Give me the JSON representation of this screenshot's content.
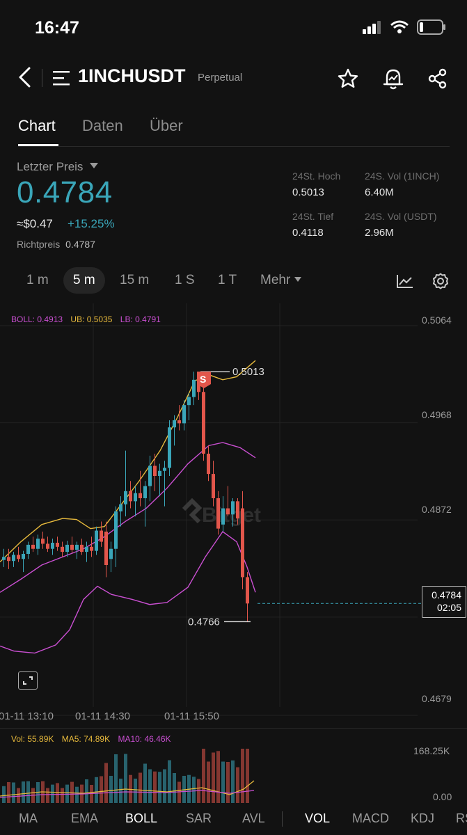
{
  "status": {
    "time": "16:47"
  },
  "header": {
    "title": "1INCHUSDT",
    "subtitle": "Perpetual"
  },
  "tabs": [
    "Chart",
    "Daten",
    "Über"
  ],
  "ticker": {
    "label": "Letzter Preis",
    "price": "0.4784",
    "approx_usd": "≈$0.47",
    "change": "+15.25%",
    "mark_label": "Richtpreis",
    "mark_price": "0.4787",
    "high_label": "24St. Hoch",
    "high": "0.5013",
    "vol_base_label": "24S. Vol (1INCH)",
    "vol_base": "6.40M",
    "low_label": "24St. Tief",
    "low": "0.4118",
    "vol_quote_label": "24S. Vol (USDT)",
    "vol_quote": "2.96M"
  },
  "timeframes": [
    "1 m",
    "5 m",
    "15 m",
    "1 S",
    "1 T",
    "Mehr"
  ],
  "chart": {
    "boll_legend": "BOLL: 0.4913",
    "ub_legend": "UB: 0.5035",
    "lb_legend": "LB: 0.4791",
    "yticks": [
      "0.5064",
      "0.4968",
      "0.4872",
      "0.4679"
    ],
    "xticks": [
      "01-11 13:10",
      "01-11 14:30",
      "01-11 15:50"
    ],
    "high_marker": "0.5013",
    "low_marker": "0.4766",
    "sell_marker": "S",
    "last_price_tag": "0.4784",
    "countdown": "02:05",
    "watermark": "Bitget",
    "colors": {
      "up": "#3aa6b9",
      "down": "#e2564b",
      "boll": "#c94fd1",
      "ub": "#e6b93c"
    }
  },
  "volume": {
    "vol_legend": "Vol: 55.89K",
    "ma5_legend": "MA5: 74.89K",
    "ma10_legend": "MA10: 46.46K",
    "yticks": [
      "168.25K",
      "0.00"
    ]
  },
  "indicators": [
    "MA",
    "EMA",
    "BOLL",
    "SAR",
    "AVL",
    "VOL",
    "MACD",
    "KDJ",
    "RSI"
  ]
}
